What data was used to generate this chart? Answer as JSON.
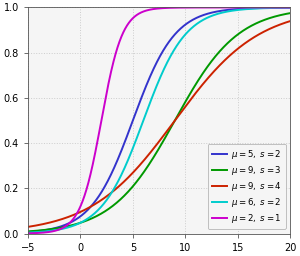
{
  "series": [
    {
      "mu": 5,
      "s": 2,
      "color": "#3333cc",
      "label": "$\\mu=5,\\ s=2$"
    },
    {
      "mu": 9,
      "s": 3,
      "color": "#009900",
      "label": "$\\mu=9,\\ s=3$"
    },
    {
      "mu": 9,
      "s": 4,
      "color": "#cc2200",
      "label": "$\\mu=9,\\ s=4$"
    },
    {
      "mu": 6,
      "s": 2,
      "color": "#00cccc",
      "label": "$\\mu=6,\\ s=2$"
    },
    {
      "mu": 2,
      "s": 1,
      "color": "#cc00cc",
      "label": "$\\mu=2,\\ s=1$"
    }
  ],
  "xlim": [
    -5,
    20
  ],
  "ylim": [
    0.0,
    1.0
  ],
  "xticks": [
    -5,
    0,
    5,
    10,
    15,
    20
  ],
  "yticks": [
    0.0,
    0.2,
    0.4,
    0.6,
    0.8,
    1.0
  ],
  "background_color": "#f5f5f5",
  "grid_color": "#cccccc",
  "linewidth": 1.4
}
